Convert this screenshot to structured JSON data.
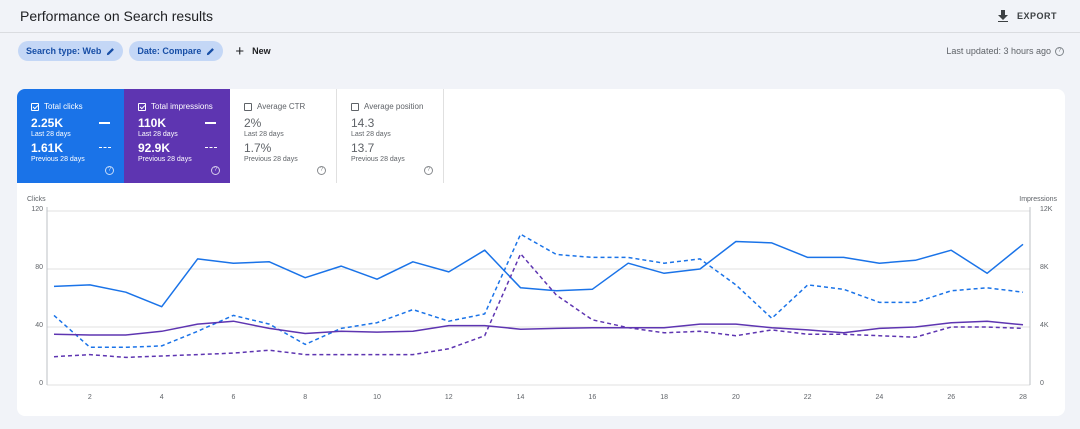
{
  "header": {
    "title": "Performance on Search results",
    "export_label": "EXPORT"
  },
  "filters": {
    "search_type": "Search type: Web",
    "date": "Date: Compare",
    "new_label": "New",
    "last_updated": "Last updated: 3 hours ago"
  },
  "metrics": {
    "clicks": {
      "label": "Total clicks",
      "value": "2.25K",
      "period": "Last 28 days",
      "prev_value": "1.61K",
      "prev_period": "Previous 28 days",
      "selected": true
    },
    "impressions": {
      "label": "Total impressions",
      "value": "110K",
      "period": "Last 28 days",
      "prev_value": "92.9K",
      "prev_period": "Previous 28 days",
      "selected": true
    },
    "ctr": {
      "label": "Average CTR",
      "value": "2%",
      "period": "Last 28 days",
      "prev_value": "1.7%",
      "prev_period": "Previous 28 days",
      "selected": false
    },
    "position": {
      "label": "Average position",
      "value": "14.3",
      "period": "Last 28 days",
      "prev_value": "13.7",
      "prev_period": "Previous 28 days",
      "selected": false
    }
  },
  "colors": {
    "clicks": "#1a73e8",
    "impressions": "#5e35b1",
    "chip_bg": "#c4d7f6"
  },
  "chart_data": {
    "type": "line",
    "ylabel_left": "Clicks",
    "ylabel_right": "Impressions",
    "y_left_ticks": [
      "0",
      "40",
      "80",
      "120"
    ],
    "y_right_ticks": [
      "0",
      "4K",
      "8K",
      "12K"
    ],
    "ylim_left": [
      0,
      120
    ],
    "ylim_right": [
      0,
      12000
    ],
    "x": [
      1,
      2,
      3,
      4,
      5,
      6,
      7,
      8,
      9,
      10,
      11,
      12,
      13,
      14,
      15,
      16,
      17,
      18,
      19,
      20,
      21,
      22,
      23,
      24,
      25,
      26,
      27,
      28
    ],
    "x_tick_labels": [
      "2",
      "4",
      "6",
      "8",
      "10",
      "12",
      "14",
      "16",
      "18",
      "20",
      "22",
      "24",
      "26",
      "28"
    ],
    "series": [
      {
        "name": "Total clicks",
        "period": "Last 28 days",
        "axis": "left",
        "style": "solid",
        "color": "#1a73e8",
        "values": [
          68,
          69,
          64,
          54,
          87,
          84,
          85,
          74,
          82,
          73,
          85,
          78,
          93,
          67,
          65,
          66,
          84,
          77,
          80,
          99,
          98,
          88,
          88,
          84,
          86,
          93,
          77,
          97
        ]
      },
      {
        "name": "Total clicks",
        "period": "Previous 28 days",
        "axis": "left",
        "style": "dashed",
        "color": "#1a73e8",
        "values": [
          48,
          26,
          26,
          27,
          37,
          48,
          42,
          28,
          39,
          43,
          52,
          44,
          49,
          104,
          90,
          88,
          88,
          84,
          87,
          69,
          46,
          69,
          66,
          57,
          57,
          65,
          67,
          64
        ]
      },
      {
        "name": "Total impressions",
        "period": "Last 28 days",
        "axis": "right",
        "style": "solid",
        "color": "#5e35b1",
        "values": [
          3500,
          3450,
          3450,
          3700,
          4200,
          4400,
          3900,
          3550,
          3700,
          3650,
          3700,
          4100,
          4100,
          3850,
          3900,
          3950,
          3950,
          3950,
          4200,
          4200,
          3950,
          3800,
          3600,
          3900,
          4000,
          4300,
          4400,
          4150
        ]
      },
      {
        "name": "Total impressions",
        "period": "Previous 28 days",
        "axis": "right",
        "style": "dashed",
        "color": "#5e35b1",
        "values": [
          1950,
          2100,
          1900,
          2000,
          2100,
          2200,
          2400,
          2100,
          2100,
          2100,
          2100,
          2500,
          3400,
          9050,
          6200,
          4500,
          3950,
          3600,
          3700,
          3400,
          3800,
          3500,
          3500,
          3400,
          3300,
          4000,
          4000,
          3900
        ]
      }
    ]
  }
}
